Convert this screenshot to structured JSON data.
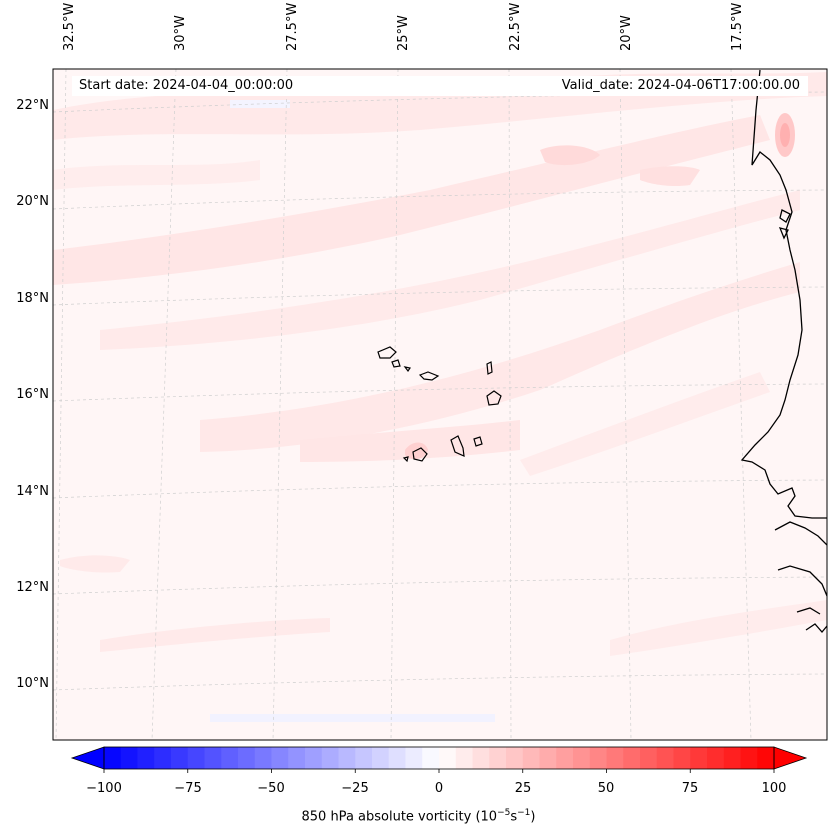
{
  "map": {
    "start_date_text": "Start date: 2024-04-04_00:00:00",
    "valid_date_text": "Valid_date: 2024-04-06T17:00:00.00",
    "lon_labels": [
      "32.5°W",
      "30°W",
      "27.5°W",
      "25°W",
      "22.5°W",
      "20°W",
      "17.5°W"
    ],
    "lat_labels": [
      "22°N",
      "20°N",
      "18°N",
      "16°N",
      "14°N",
      "12°N",
      "10°N"
    ],
    "features": [
      "Cape Verde islands",
      "West African coastline"
    ]
  },
  "colorbar": {
    "label": "850 hPa absolute vorticity (10",
    "label_exp1": "−5",
    "label_mid": "s",
    "label_exp2": "−1",
    "label_end": ")",
    "ticks": [
      "−100",
      "−75",
      "−50",
      "−25",
      "0",
      "25",
      "50",
      "75",
      "100"
    ],
    "range": [
      -100,
      100
    ],
    "step": 5,
    "colormap": "bwr",
    "min_color": "#0000ff",
    "mid_color": "#ffffff",
    "max_color": "#ff0000"
  }
}
